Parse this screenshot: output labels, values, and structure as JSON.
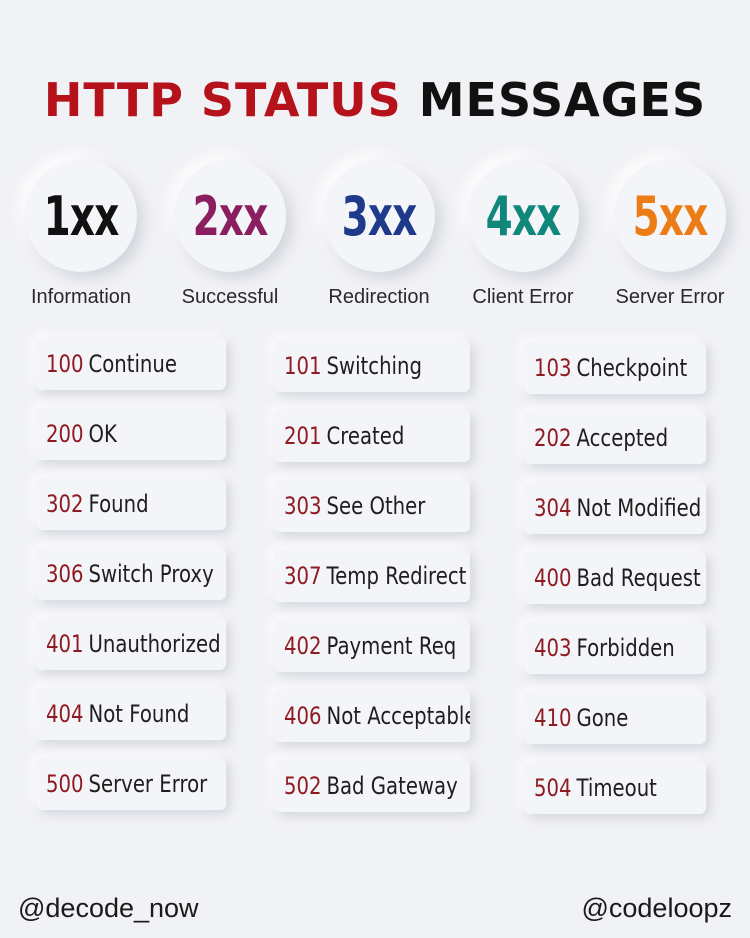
{
  "title": {
    "part1": "HTTP STATUS",
    "part2": "MESSAGES"
  },
  "colors": {
    "title_red": "#b5121b",
    "number": "#8e1a22"
  },
  "categories": [
    {
      "code": "1xx",
      "label": "Information",
      "color": "#111111"
    },
    {
      "code": "2xx",
      "label": "Successful",
      "color": "#8a1e5e"
    },
    {
      "code": "3xx",
      "label": "Redirection",
      "color": "#1f3a8a"
    },
    {
      "code": "4xx",
      "label": "Client Error",
      "color": "#11877a"
    },
    {
      "code": "5xx",
      "label": "Server Error",
      "color": "#ec7d16"
    }
  ],
  "statuses": [
    {
      "code": "100",
      "text": "Continue"
    },
    {
      "code": "101",
      "text": "Switching"
    },
    {
      "code": "103",
      "text": "Checkpoint"
    },
    {
      "code": "200",
      "text": "OK"
    },
    {
      "code": "201",
      "text": "Created"
    },
    {
      "code": "202",
      "text": "Accepted"
    },
    {
      "code": "302",
      "text": "Found"
    },
    {
      "code": "303",
      "text": "See Other"
    },
    {
      "code": "304",
      "text": "Not Modified"
    },
    {
      "code": "306",
      "text": "Switch Proxy"
    },
    {
      "code": "307",
      "text": "Temp Redirect"
    },
    {
      "code": "400",
      "text": "Bad Request"
    },
    {
      "code": "401",
      "text": "Unauthorized"
    },
    {
      "code": "402",
      "text": "Payment Req"
    },
    {
      "code": "403",
      "text": "Forbidden"
    },
    {
      "code": "404",
      "text": "Not Found"
    },
    {
      "code": "406",
      "text": "Not Acceptable"
    },
    {
      "code": "410",
      "text": "Gone"
    },
    {
      "code": "500",
      "text": "Server Error"
    },
    {
      "code": "502",
      "text": "Bad Gateway"
    },
    {
      "code": "504",
      "text": "Timeout"
    }
  ],
  "footer": {
    "left": "@decode_now",
    "right": "@codeloopz"
  }
}
